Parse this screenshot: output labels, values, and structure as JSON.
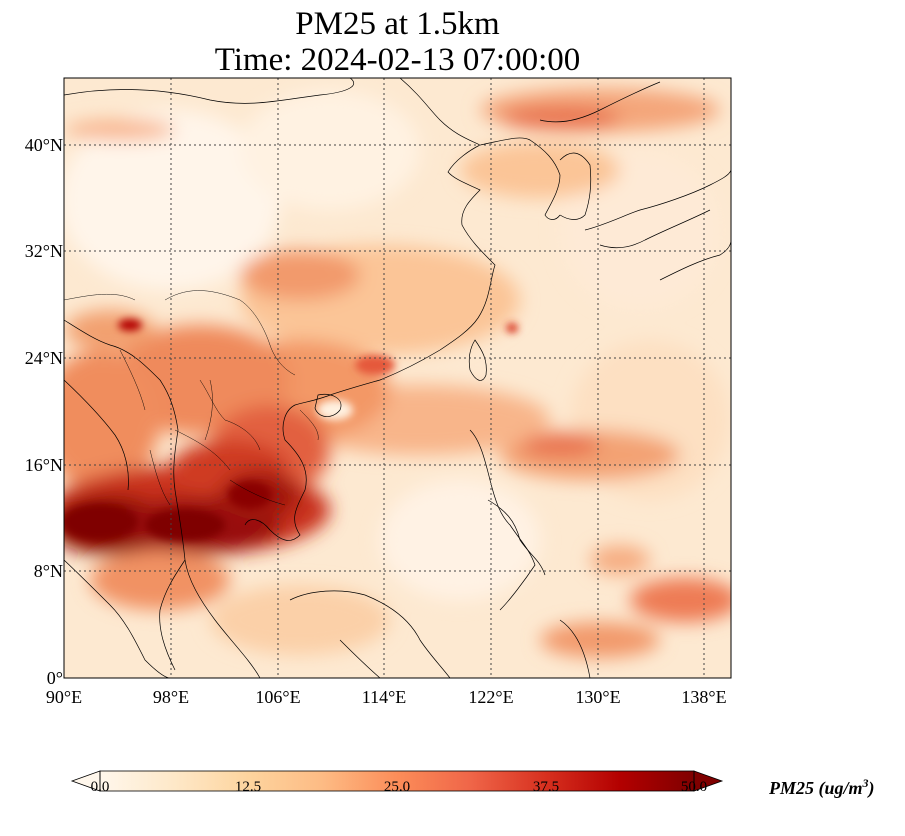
{
  "title": {
    "line1": "PM25 at 1.5km",
    "line2": "Time: 2024-02-13 07:00:00"
  },
  "map": {
    "extent": {
      "lon_min": 90,
      "lon_max": 140,
      "lat_min": 0,
      "lat_max": 45
    },
    "gridlines": true,
    "lat_ticks": [
      "40°N",
      "32°N",
      "24°N",
      "16°N",
      "8°N",
      "0°"
    ],
    "lon_ticks": [
      "90°E",
      "98°E",
      "106°E",
      "114°E",
      "122°E",
      "130°E",
      "138°E"
    ],
    "colormap": "OrRd",
    "high_regions": [
      "Indochina / Thailand–Cambodia around 10–14°N, 90–106°E (darkest, ≥50)",
      "Southern China / Vietnam around 18–24°N (25–40)",
      "Band from Sichuan to Korea (20–30)",
      "Band over NE China ~42°N (25–35)",
      "Patch east of Philippines ~4–8°N, 130–140°E (30–35)"
    ]
  },
  "colorbar": {
    "label": "PM25 (ug/m",
    "label_sup": "3",
    "label_tail": ")",
    "ticks": [
      "0.0",
      "12.5",
      "25.0",
      "37.5",
      "50.0"
    ],
    "min": 0,
    "max": 50,
    "extend": "both",
    "colors": [
      "#fff7ec",
      "#fee8c8",
      "#fdd49e",
      "#fdbb84",
      "#fc8d59",
      "#ef6548",
      "#d7301f",
      "#b30000",
      "#7f0000"
    ]
  }
}
